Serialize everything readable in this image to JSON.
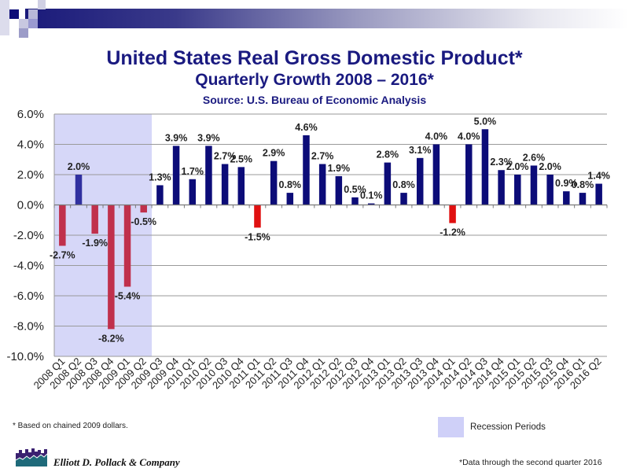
{
  "header": {
    "title": "United States Real Gross Domestic Product*",
    "subtitle": "Quarterly Growth 2008 – 2016*",
    "source": "Source: U.S. Bureau of Economic Analysis"
  },
  "footer": {
    "footnote": "* Based on chained 2009 dollars.",
    "legend_label": "Recession Periods",
    "company": "Elliott D. Pollack & Company",
    "data_note": "*Data through the second quarter 2016"
  },
  "colors": {
    "positive": "#0c0c78",
    "negative_recession": "#c0304c",
    "negative_other": "#e01010",
    "recession_shade": "#d6d7f8",
    "recession_positive": "#3030a0",
    "title": "#1a1a80"
  },
  "chart_data": {
    "type": "bar",
    "title": "United States Real Gross Domestic Product* Quarterly Growth 2008 – 2016*",
    "subtitle": "Source: U.S. Bureau of Economic Analysis",
    "xlabel": "",
    "ylabel": "",
    "ylim": [
      -10,
      6
    ],
    "yticks": [
      6,
      4,
      2,
      0,
      -2,
      -4,
      -6,
      -8,
      -10
    ],
    "ytick_labels": [
      "6.0%",
      "4.0%",
      "2.0%",
      "0.0%",
      "-2.0%",
      "-4.0%",
      "-6.0%",
      "-8.0%",
      "-10.0%"
    ],
    "grid": true,
    "legend": "bottom-right",
    "recession_period": [
      "2008 Q1",
      "2009 Q2"
    ],
    "categories": [
      "2008 Q1",
      "2008 Q2",
      "2008 Q3",
      "2008 Q4",
      "2009 Q1",
      "2009 Q2",
      "2009 Q3",
      "2009 Q4",
      "2010 Q1",
      "2010 Q2",
      "2010 Q3",
      "2010 Q4",
      "2011 Q1",
      "2011 Q2",
      "2011 Q3",
      "2011 Q4",
      "2012 Q1",
      "2012 Q2",
      "2012 Q3",
      "2012 Q4",
      "2013 Q1",
      "2013 Q2",
      "2013 Q3",
      "2013 Q4",
      "2014 Q1",
      "2014 Q2",
      "2014 Q3",
      "2014 Q4",
      "2015 Q1",
      "2015 Q2",
      "2015 Q3",
      "2015 Q4",
      "2016 Q1",
      "2016 Q2"
    ],
    "values": [
      -2.7,
      2.0,
      -1.9,
      -8.2,
      -5.4,
      -0.5,
      1.3,
      3.9,
      1.7,
      3.9,
      2.7,
      2.5,
      -1.5,
      2.9,
      0.8,
      4.6,
      2.7,
      1.9,
      0.5,
      0.1,
      2.8,
      0.8,
      3.1,
      4.0,
      -1.2,
      4.0,
      5.0,
      2.3,
      2.0,
      2.6,
      2.0,
      0.9,
      0.8,
      1.4
    ],
    "data_labels": [
      "-2.7%",
      "2.0%",
      "-1.9%",
      "-8.2%",
      "-5.4%",
      "-0.5%",
      "1.3%",
      "3.9%",
      "1.7%",
      "3.9%",
      "2.7%",
      "2.5%",
      "-1.5%",
      "2.9%",
      "0.8%",
      "4.6%",
      "2.7%",
      "1.9%",
      "0.5%",
      "0.1%",
      "2.8%",
      "0.8%",
      "3.1%",
      "4.0%",
      "-1.2%",
      "4.0%",
      "5.0%",
      "2.3%",
      "2.0%",
      "2.6%",
      "2.0%",
      "0.9%",
      "0.8%",
      "1.4%"
    ]
  }
}
